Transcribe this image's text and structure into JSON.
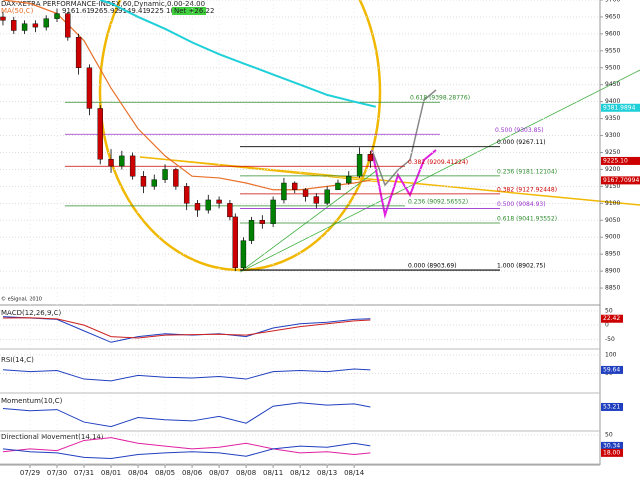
{
  "chart_data": {
    "type": "candlestick",
    "title": "DAX-XETRA PERFORMANCE-INDEX,60,Dynamic,0.00-24.00",
    "subtitle": "MA(50,C)",
    "header_values": [
      "9161.61",
      "9265.92",
      "9149.41",
      "9225.10"
    ],
    "net": "Net +26.22",
    "copyright": "© eSignal, 2010",
    "x": [
      -1,
      -0.6,
      -0.2,
      0.2,
      0.6,
      1,
      1.4,
      1.8,
      2.2,
      2.6,
      3,
      3.4,
      3.8,
      4.2,
      4.6,
      5,
      5.4,
      5.8,
      6.2,
      6.6,
      7,
      7.4,
      7.6,
      7.9,
      8.2,
      8.6,
      9,
      9.4,
      9.8,
      10.2,
      10.6,
      11,
      11.4,
      11.8,
      12.2,
      12.6
    ],
    "open": [
      9650,
      9640,
      9610,
      9630,
      9620,
      9645,
      9660,
      9590,
      9500,
      9380,
      9230,
      9210,
      9240,
      9180,
      9150,
      9170,
      9200,
      9150,
      9100,
      9080,
      9110,
      9100,
      9060,
      8910,
      8990,
      9050,
      9040,
      9110,
      9160,
      9140,
      9120,
      9100,
      9140,
      9160,
      9180,
      9245
    ],
    "high": [
      9665,
      9650,
      9640,
      9640,
      9655,
      9675,
      9665,
      9600,
      9510,
      9390,
      9260,
      9255,
      9250,
      9195,
      9185,
      9215,
      9205,
      9160,
      9110,
      9125,
      9120,
      9110,
      9070,
      9000,
      9060,
      9065,
      9120,
      9175,
      9165,
      9145,
      9130,
      9150,
      9170,
      9195,
      9265,
      9255
    ],
    "low": [
      9625,
      9600,
      9600,
      9605,
      9610,
      9635,
      9580,
      9480,
      9360,
      9215,
      9190,
      9200,
      9170,
      9130,
      9140,
      9160,
      9140,
      9080,
      9060,
      9070,
      9085,
      9050,
      8900,
      8905,
      8980,
      9025,
      9030,
      9100,
      9130,
      9105,
      9085,
      9095,
      9140,
      9155,
      9175,
      9205
    ],
    "close": [
      9640,
      9610,
      9630,
      9620,
      9645,
      9660,
      9590,
      9500,
      9380,
      9230,
      9210,
      9240,
      9180,
      9150,
      9170,
      9200,
      9150,
      9100,
      9080,
      9110,
      9100,
      9060,
      8910,
      8990,
      9050,
      9040,
      9110,
      9160,
      9140,
      9120,
      9100,
      9140,
      9160,
      9180,
      9245,
      9225.1
    ],
    "up_color": "#008000",
    "down_color": "#cc0000",
    "lines": [
      {
        "color": "#e8702a",
        "x": [
          -1,
          0,
          1,
          2,
          3,
          4,
          5,
          6,
          7,
          8,
          9,
          10,
          11,
          12,
          12.6
        ],
        "values": [
          9700,
          9690,
          9660,
          9580,
          9440,
          9320,
          9240,
          9180,
          9175,
          9160,
          9140,
          9140,
          9150,
          9160,
          9168
        ]
      },
      {
        "color": "#20d0d8",
        "x": [
          2.6,
          3,
          4,
          5,
          6,
          7,
          8,
          9,
          10,
          11,
          12,
          12.8
        ],
        "values": [
          9700,
          9690,
          9650,
          9615,
          9575,
          9540,
          9510,
          9480,
          9450,
          9420,
          9400,
          9385
        ]
      }
    ],
    "fib": [
      {
        "label": "0.618 (9398.28776)",
        "value": 9398.28776,
        "color": "#2e8b2e"
      },
      {
        "label": "0.500 (9303.85)",
        "value": 9303.85,
        "color": "#9932cc"
      },
      {
        "label": "0.000 (9267.11)",
        "value": 9267.11,
        "color": "#000000"
      },
      {
        "label": "0.382 (9209.41224)",
        "value": 9209.41224,
        "color": "#cc0000"
      },
      {
        "label": "0.236 (9181.12104)",
        "value": 9181.12104,
        "color": "#2e8b2e"
      },
      {
        "label": "0.382 (9127.92448)",
        "value": 9127.92448,
        "color": "#cc0000"
      },
      {
        "label": "0.236 (9092.56552)",
        "value": 9092.56552,
        "color": "#2e8b2e"
      },
      {
        "label": "0.500 (9084.93)",
        "value": 9084.93,
        "color": "#9932cc"
      },
      {
        "label": "0.618 (9041.93552)",
        "value": 9041.93552,
        "color": "#2e8b2e"
      },
      {
        "label": "0.000 (8903.69)",
        "value": 8903.69,
        "color": "#000000"
      },
      {
        "label": "1.000 (8902.75)",
        "value": 8902.75,
        "color": "#000000"
      }
    ],
    "price_labels": [
      {
        "value": 9381.9894,
        "label": "9381.9894",
        "color": "#20d0d8"
      },
      {
        "value": 9225.1,
        "label": "9225.10",
        "color": "#cc0000"
      },
      {
        "value": 9167.70994,
        "label": "9167.70994",
        "color": "#cc0000"
      }
    ],
    "ylim": [
      8800,
      9700
    ],
    "yticks": [
      8850,
      8900,
      8950,
      9000,
      9050,
      9100,
      9150,
      9200,
      9250,
      9300,
      9350,
      9400,
      9450,
      9500,
      9550,
      9600,
      9650,
      9700
    ],
    "xlim": [
      -1.11,
      21.1
    ],
    "xticks": [
      {
        "value": 0,
        "label": "07/29"
      },
      {
        "value": 1,
        "label": "07/30"
      },
      {
        "value": 2,
        "label": "07/31"
      },
      {
        "value": 3,
        "label": "08/01"
      },
      {
        "value": 4,
        "label": "08/04"
      },
      {
        "value": 5,
        "label": "08/05"
      },
      {
        "value": 6,
        "label": "08/06"
      },
      {
        "value": 7,
        "label": "08/07"
      },
      {
        "value": 8,
        "label": "08/08"
      },
      {
        "value": 9,
        "label": "08/11"
      },
      {
        "value": 10,
        "label": "08/12"
      },
      {
        "value": 11,
        "label": "08/13"
      },
      {
        "value": 12,
        "label": "08/14"
      }
    ],
    "grid": true,
    "panels": [
      {
        "title": "MACD(12,26,9,C)",
        "ylim": [
          -80,
          60
        ],
        "yticks": [
          -50,
          0,
          50
        ],
        "x": [
          -1,
          0,
          1,
          2,
          3,
          4,
          5,
          6,
          7,
          8,
          9,
          10,
          11,
          12,
          12.6
        ],
        "series": [
          {
            "color": "#2040c0",
            "values": [
              30,
              25,
              20,
              -20,
              -60,
              -40,
              -30,
              -35,
              -30,
              -40,
              -10,
              5,
              10,
              20,
              22.42
            ]
          },
          {
            "color": "#cc2020",
            "values": [
              25,
              26,
              22,
              0,
              -40,
              -45,
              -35,
              -33,
              -32,
              -35,
              -20,
              -5,
              5,
              15,
              18
            ]
          }
        ],
        "labels": [
          {
            "value": 22.42,
            "color": "#cc0000"
          }
        ]
      },
      {
        "title": "RSI(14,C)",
        "ylim": [
          0,
          100
        ],
        "yticks": [
          50,
          100
        ],
        "x": [
          -1,
          0,
          1,
          2,
          3,
          4,
          5,
          6,
          7,
          8,
          9,
          10,
          11,
          12,
          12.6
        ],
        "series": [
          {
            "color": "#2040c0",
            "values": [
              60,
              55,
              58,
              35,
              30,
              45,
              40,
              38,
              42,
              35,
              55,
              58,
              55,
              62,
              59.64
            ]
          }
        ],
        "labels": [
          {
            "value": 59.64,
            "color": "#2040c0"
          }
        ]
      },
      {
        "title": "Momentum(10,C)",
        "ylim": [
          -150,
          150
        ],
        "x": [
          -1,
          0,
          1,
          2,
          3,
          4,
          5,
          6,
          7,
          8,
          9,
          10,
          11,
          12,
          12.6
        ],
        "series": [
          {
            "color": "#2040c0",
            "values": [
              40,
              20,
              30,
              -80,
              -120,
              -40,
              -60,
              -70,
              -30,
              -90,
              60,
              90,
              70,
              80,
              53.21
            ]
          }
        ],
        "labels": [
          {
            "value": 53.21,
            "color": "#2040c0"
          }
        ]
      },
      {
        "title": "Directional Movement(14,14)",
        "ylim": [
          0,
          55
        ],
        "yticks": [
          50
        ],
        "x": [
          -1,
          0,
          1,
          2,
          3,
          4,
          5,
          6,
          7,
          8,
          9,
          10,
          11,
          12,
          12.6
        ],
        "series": [
          {
            "color": "#e020a0",
            "values": [
              20,
              25,
              22,
              40,
              45,
              35,
              30,
              25,
              28,
              35,
              25,
              18,
              20,
              15,
              18
            ]
          },
          {
            "color": "#2040c0",
            "values": [
              25,
              20,
              18,
              10,
              8,
              15,
              18,
              20,
              18,
              12,
              25,
              30,
              28,
              35,
              30.34
            ]
          }
        ],
        "labels": [
          {
            "value": 30.34,
            "color": "#2040c0"
          },
          {
            "value": 18,
            "label": "18.00",
            "color": "#cc0000"
          }
        ]
      }
    ]
  }
}
